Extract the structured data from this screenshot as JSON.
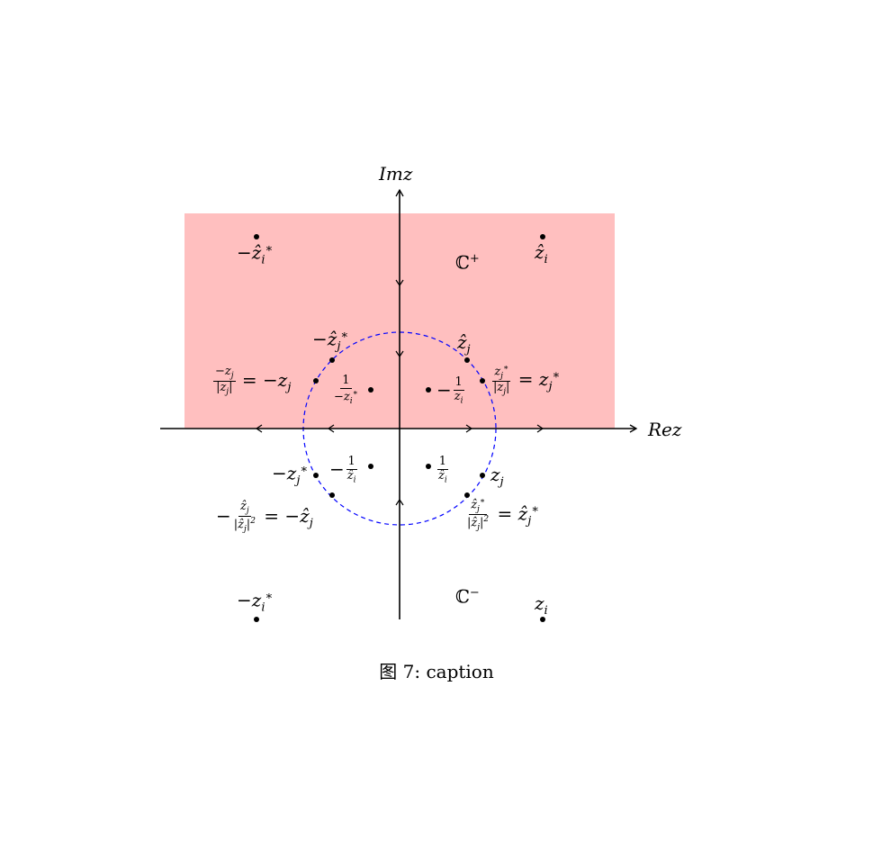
{
  "axes": {
    "x_label": "Rez",
    "y_label": "Imz"
  },
  "regions": {
    "upper": "ℂ",
    "upper_sup": "+",
    "lower": "ℂ",
    "lower_sup": "−"
  },
  "caption": "图 7: caption",
  "colors": {
    "upper_half_plane": "#ffbfbf",
    "unit_circle": "#0000ff",
    "points": "#000000",
    "axes": "#000000"
  }
}
